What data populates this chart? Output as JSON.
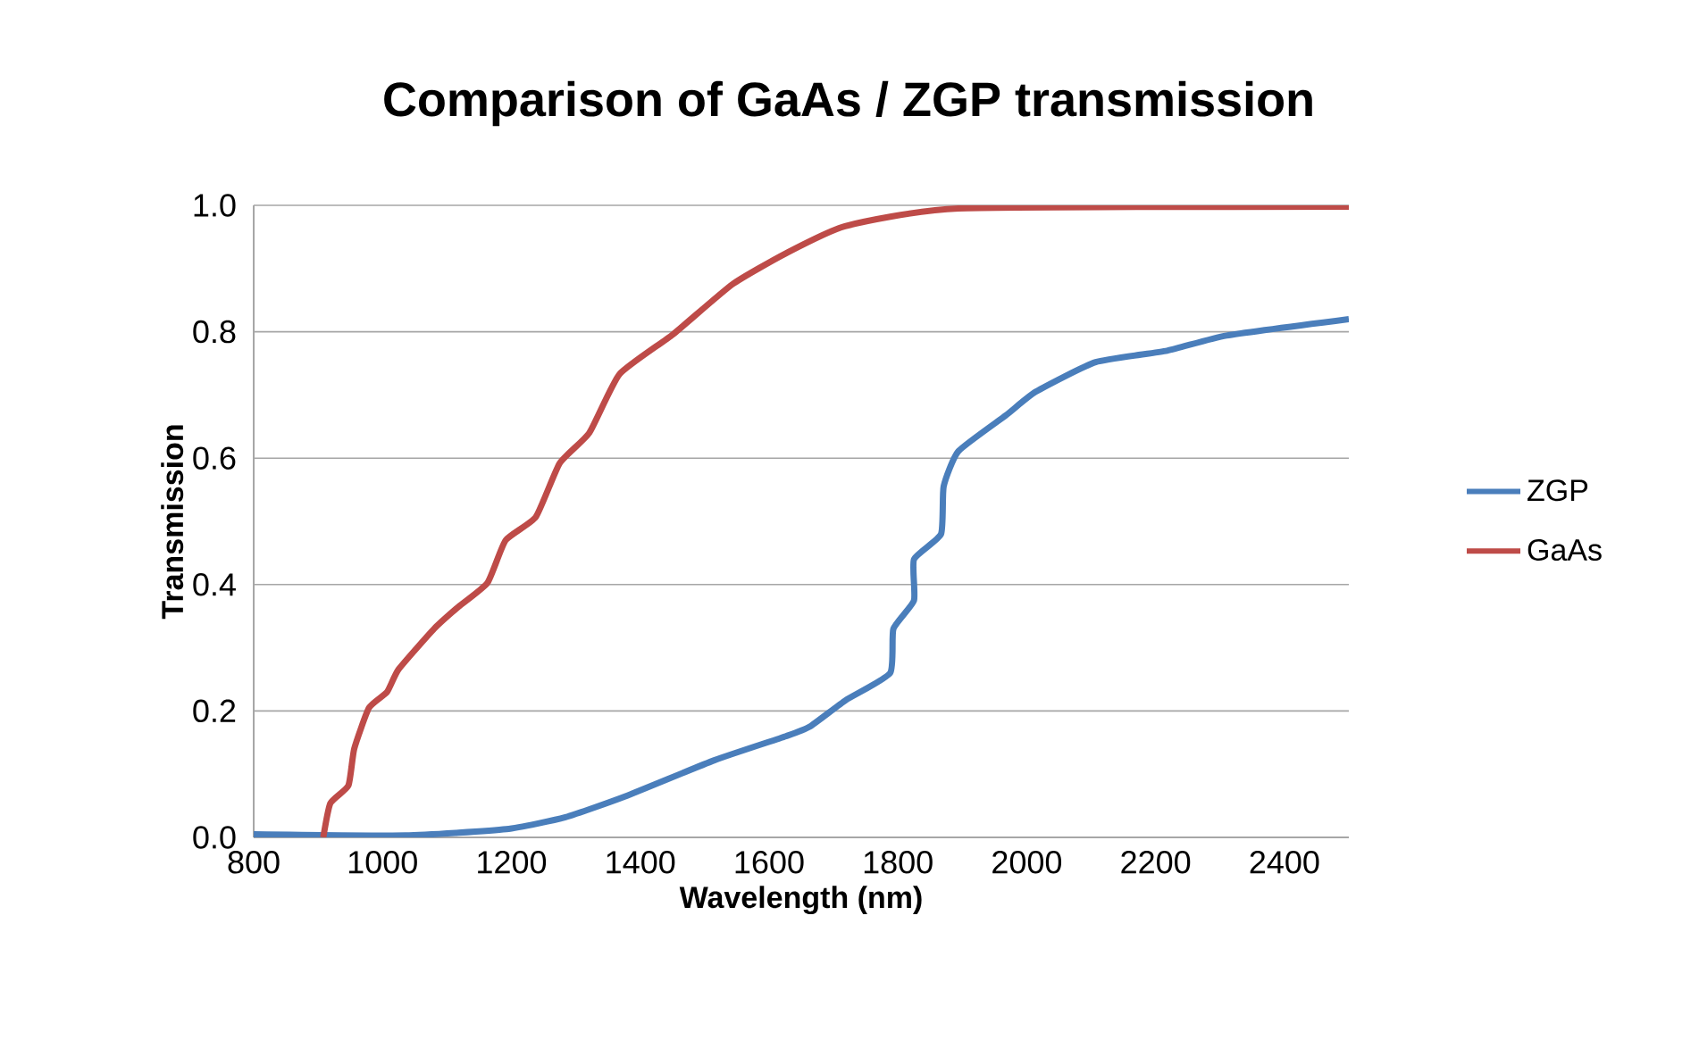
{
  "chart_data": {
    "type": "line",
    "title": "Comparison of GaAs / ZGP transmission",
    "xlabel": "Wavelength (nm)",
    "ylabel": "Transmission",
    "xlim": [
      800,
      2500
    ],
    "ylim": [
      0,
      1
    ],
    "xticks": [
      800,
      1000,
      1200,
      1400,
      1600,
      1800,
      2000,
      2200,
      2400
    ],
    "yticks": [
      {
        "value": 0,
        "label": "0.0"
      },
      {
        "value": 0.2,
        "label": "0.2"
      },
      {
        "value": 0.4,
        "label": "0.4"
      },
      {
        "value": 0.6,
        "label": "0.6"
      },
      {
        "value": 0.8,
        "label": "0.8"
      },
      {
        "value": 1,
        "label": "1.0"
      }
    ],
    "grid": "y",
    "legend": "right",
    "series": [
      {
        "name": "ZGP",
        "color": "#4a7ebb",
        "x": [
          800,
          1035,
          1192,
          1284,
          1377,
          1515,
          1626,
          1663,
          1719,
          1788,
          1793,
          1825,
          1825,
          1867,
          1871,
          1894,
          1968,
          2014,
          2107,
          2218,
          2310,
          2500
        ],
        "values": [
          0.005,
          0.003,
          0.013,
          0.032,
          0.065,
          0.122,
          0.16,
          0.175,
          0.217,
          0.26,
          0.33,
          0.375,
          0.44,
          0.48,
          0.555,
          0.611,
          0.668,
          0.705,
          0.752,
          0.77,
          0.794,
          0.82
        ]
      },
      {
        "name": "GaAs",
        "color": "#be4b48",
        "x": [
          908,
          919,
          947,
          956,
          979,
          1007,
          1025,
          1080,
          1118,
          1163,
          1191,
          1238,
          1275,
          1321,
          1368,
          1451,
          1543,
          1626,
          1718,
          1894,
          2500
        ],
        "values": [
          0,
          0.054,
          0.082,
          0.14,
          0.205,
          0.23,
          0.266,
          0.33,
          0.365,
          0.403,
          0.47,
          0.507,
          0.592,
          0.64,
          0.733,
          0.796,
          0.875,
          0.924,
          0.967,
          0.995,
          0.998
        ]
      }
    ]
  }
}
